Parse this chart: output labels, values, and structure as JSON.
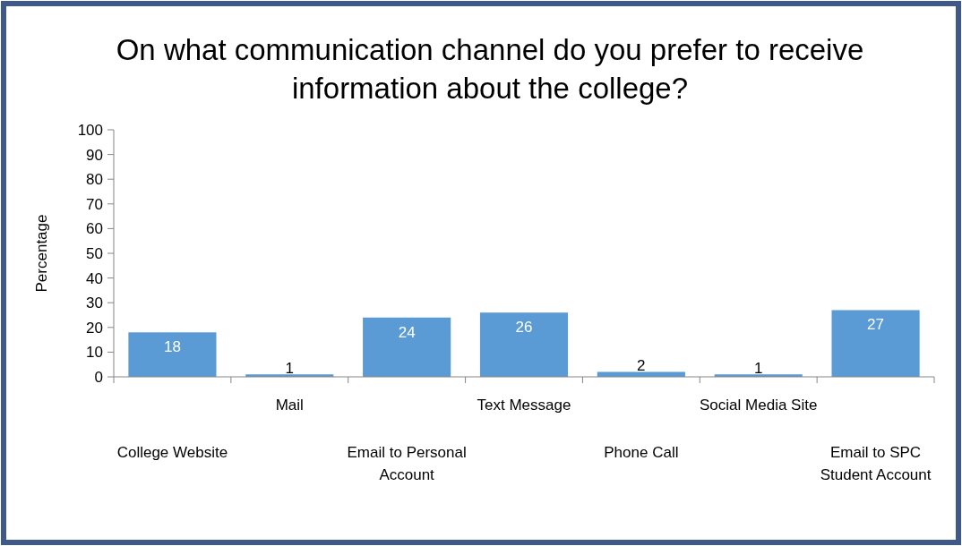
{
  "chart_data": {
    "type": "bar",
    "title": "On what communication channel do you prefer to receive information about the college?",
    "ylabel": "Percentage",
    "categories": [
      "College Website",
      "Mail",
      "Email to Personal Account",
      "Text Message",
      "Phone Call",
      "Social Media Site",
      "Email to SPC Student Account"
    ],
    "values": [
      18,
      1,
      24,
      26,
      2,
      1,
      27
    ],
    "color": "#5b9bd5",
    "ylim": [
      0,
      100
    ],
    "yticks": [
      0,
      10,
      20,
      30,
      40,
      50,
      60,
      70,
      80,
      90,
      100
    ],
    "grid": false,
    "data_labels": true
  }
}
